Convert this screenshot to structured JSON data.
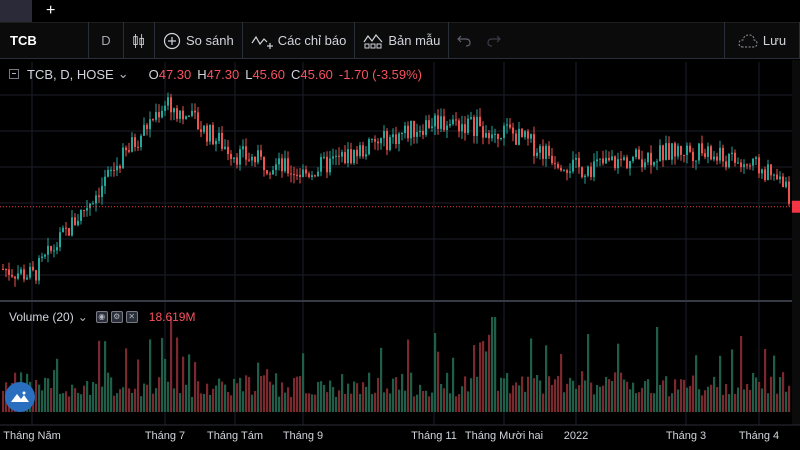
{
  "tabs": {
    "new_tab_label": "+"
  },
  "toolbar": {
    "symbol": "TCB",
    "interval": "D",
    "compare_label": "So sánh",
    "indicators_label": "Các chỉ báo",
    "templates_label": "Bản mẫu",
    "save_label": "Lưu"
  },
  "legend": {
    "symbol_text": "TCB, D, HOSE",
    "open_key": "O",
    "open": "47.30",
    "high_key": "H",
    "high": "47.30",
    "low_key": "L",
    "low": "45.60",
    "close_key": "C",
    "close": "45.60",
    "change": "-1.70 (-3.59%)"
  },
  "volume_legend": {
    "title": "Volume (20)",
    "value": "18.619M"
  },
  "colors": {
    "up": "#26a69a",
    "down": "#ef5350",
    "price_line": "#f23645",
    "grid": "#1b1f2a",
    "divider": "#363a45"
  },
  "time_axis": {
    "labels": [
      "Tháng Năm",
      "Tháng 7",
      "Tháng Tám",
      "Tháng 9",
      "Tháng 11",
      "Tháng Mười hai",
      "2022",
      "Tháng 3",
      "Tháng 4"
    ]
  },
  "chart_data": {
    "type": "candlestick",
    "symbol": "TCB",
    "interval": "D",
    "exchange": "HOSE",
    "last_close": 45.6,
    "price_line": 45.6,
    "period": {
      "start": "Tháng Năm",
      "end": "Tháng 4"
    },
    "volume_last": "18.619M",
    "close_path_approx": [
      {
        "x": "Tháng Năm",
        "close": 38.5
      },
      {
        "x": "Tháng 7",
        "close": 56.5
      },
      {
        "x": "Tháng Tám",
        "close": 51.0
      },
      {
        "x": "Tháng 9",
        "close": 49.0
      },
      {
        "x": "Tháng 11",
        "close": 54.5
      },
      {
        "x": "Tháng Mười hai",
        "close": 53.5
      },
      {
        "x": "2022",
        "close": 49.5
      },
      {
        "x": "Tháng 3",
        "close": 51.5
      },
      {
        "x": "Tháng 4",
        "close": 49.5
      }
    ]
  }
}
